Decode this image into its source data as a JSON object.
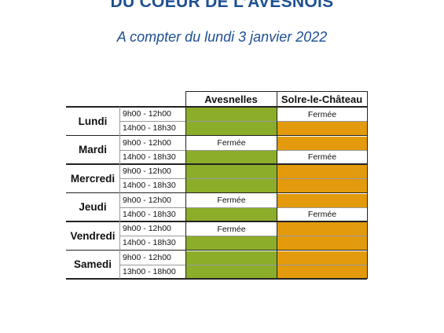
{
  "header": {
    "title": "DU COEUR DE L’AVESNOIS",
    "subtitle": "A compter du lundi 3 janvier 2022"
  },
  "table": {
    "columns": [
      "Avesnelles",
      "Solre-le-Château"
    ],
    "open_colors": [
      "#8cad2a",
      "#e39a0c"
    ],
    "days": [
      {
        "day": "Lundi",
        "slots": [
          {
            "time": "9h00 - 12h00",
            "cells": [
              null,
              "Fermée"
            ]
          },
          {
            "time": "14h00 - 18h30",
            "cells": [
              null,
              null
            ]
          }
        ]
      },
      {
        "day": "Mardi",
        "slots": [
          {
            "time": "9h00 - 12h00",
            "cells": [
              "Fermée",
              null
            ]
          },
          {
            "time": "14h00 - 18h30",
            "cells": [
              null,
              "Fermée"
            ]
          }
        ]
      },
      {
        "day": "Mercredi",
        "slots": [
          {
            "time": "9h00 - 12h00",
            "cells": [
              null,
              null
            ]
          },
          {
            "time": "14h00 - 18h30",
            "cells": [
              null,
              null
            ]
          }
        ]
      },
      {
        "day": "Jeudi",
        "slots": [
          {
            "time": "9h00 - 12h00",
            "cells": [
              "Fermée",
              null
            ]
          },
          {
            "time": "14h00 - 18h30",
            "cells": [
              null,
              "Fermée"
            ]
          }
        ]
      },
      {
        "day": "Vendredi",
        "slots": [
          {
            "time": "9h00 - 12h00",
            "cells": [
              "Fermée",
              null
            ]
          },
          {
            "time": "14h00 - 18h30",
            "cells": [
              null,
              null
            ]
          }
        ]
      },
      {
        "day": "Samedi",
        "slots": [
          {
            "time": "9h00 - 12h00",
            "cells": [
              null,
              null
            ]
          },
          {
            "time": "13h00 - 18h00",
            "cells": [
              null,
              null
            ]
          }
        ]
      }
    ]
  }
}
